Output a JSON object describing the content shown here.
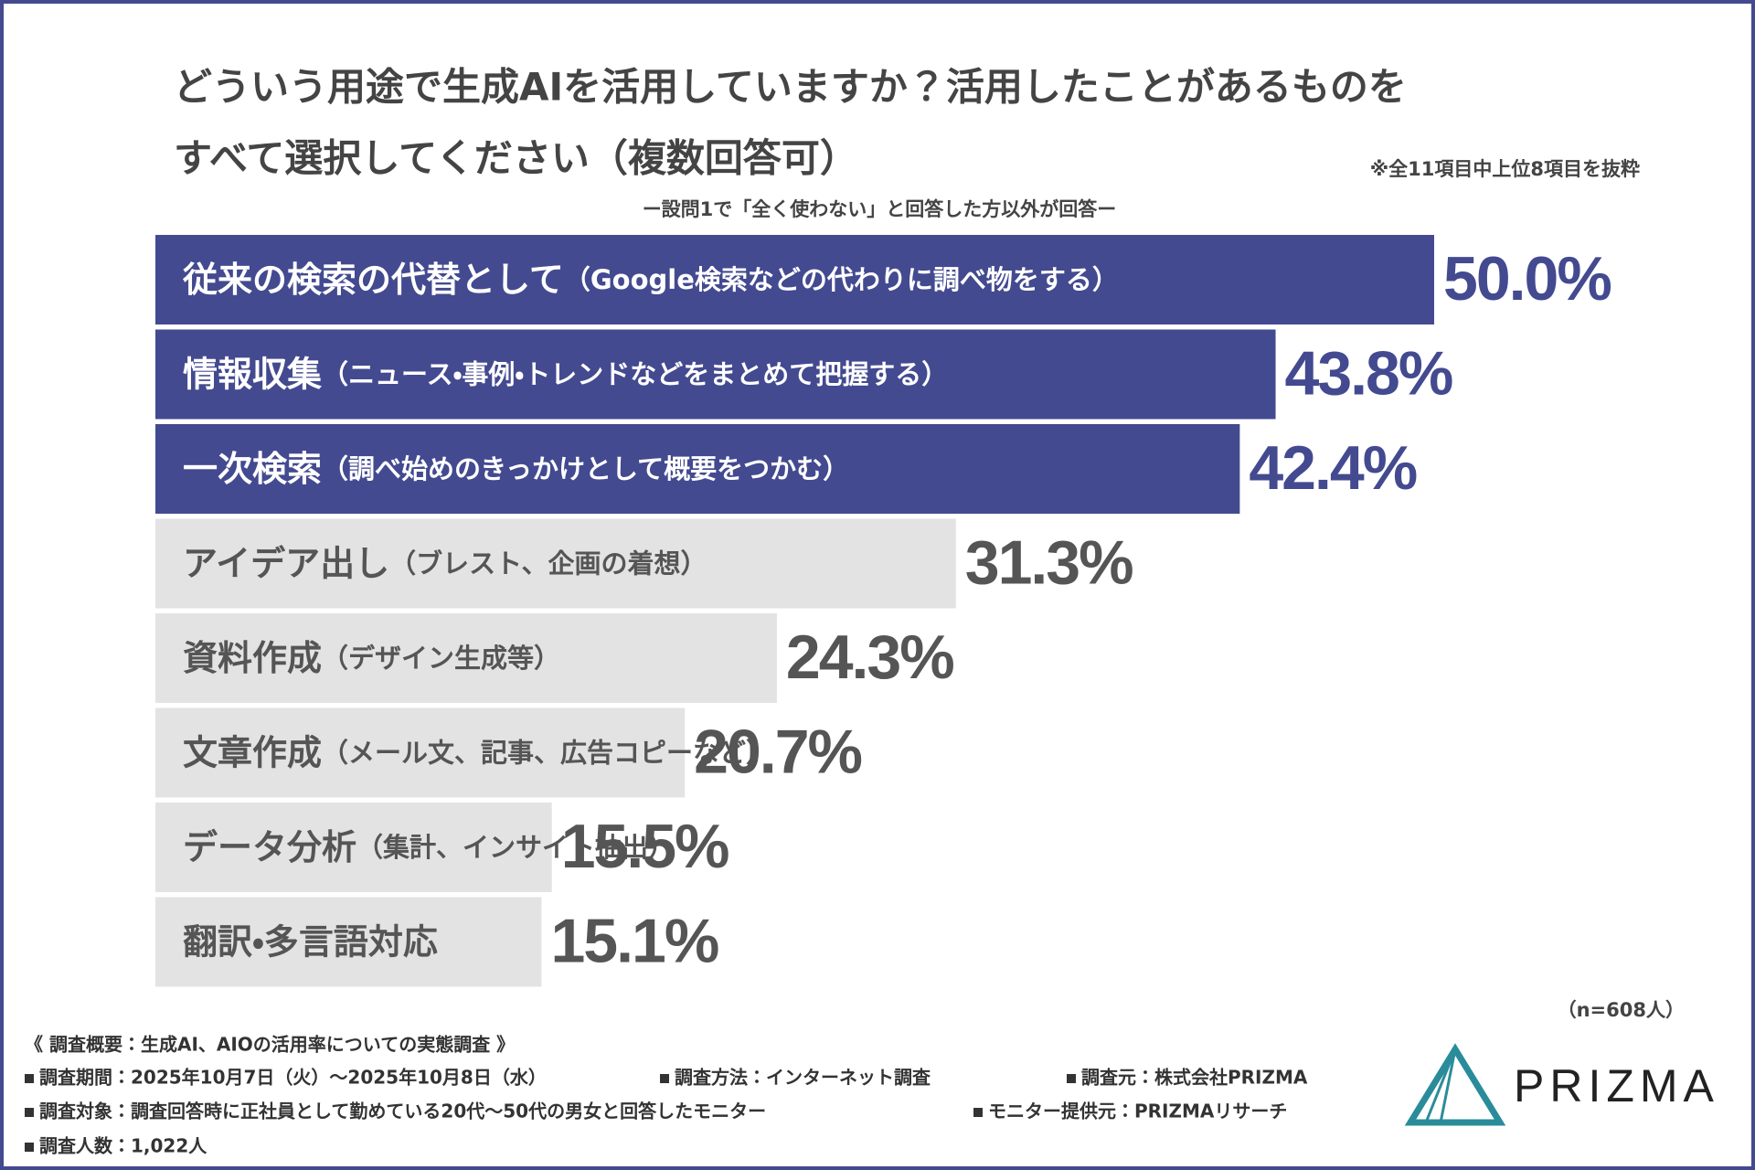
{
  "chart_data": {
    "type": "bar",
    "orientation": "horizontal",
    "title": [
      "どういう用途で生成AIを活用していますか？活用したことがあるものを",
      "すべて選択してください（複数回答可）"
    ],
    "note": "※全11項目中上位8項目を抜粋",
    "subtitle": "ー設問1で「全く使わない」と回答した方以外が回答ー",
    "categories": [
      "従来の検索の代替として（Google検索などの代わりに調べ物をする）",
      "情報収集（ニュース・事例・トレンドなどをまとめて把握する）",
      "一次検索（調べ始めのきっかけとして概要をつかむ）",
      "アイデア出し（ブレスト、企画の着想）",
      "資料作成（デザイン生成等）",
      "文章作成（メール文、記事、広告コピーなど）",
      "データ分析（集計、インサイト抽出）",
      "翻訳・多言語対応"
    ],
    "values": [
      50.0,
      43.8,
      42.4,
      31.3,
      24.3,
      20.7,
      15.5,
      15.1
    ],
    "value_labels": [
      "50.0%",
      "43.8%",
      "42.4%",
      "31.3%",
      "24.3%",
      "20.7%",
      "15.5%",
      "15.1%"
    ],
    "colors": [
      "#434a90",
      "#434a90",
      "#434a90",
      "#e3e3e3",
      "#e3e3e3",
      "#e3e3e3",
      "#e3e3e3",
      "#e3e3e3"
    ],
    "sample": "（n=608人）"
  },
  "survey": {
    "heading": "《 調査概要：生成AI、AIOの活用率についての実態調査 》",
    "items": [
      "調査期間：2025年10月7日（火）〜2025年10月8日（水）",
      "調査方法：インターネット調査",
      "調査元：株式会社PRIZMA",
      "調査対象：調査回答時に正社員として勤めている20代〜50代の男女と回答したモニター",
      "モニター提供元：PRIZMAリサーチ",
      "調査人数：1,022人"
    ]
  },
  "logo": "PRIZMA"
}
